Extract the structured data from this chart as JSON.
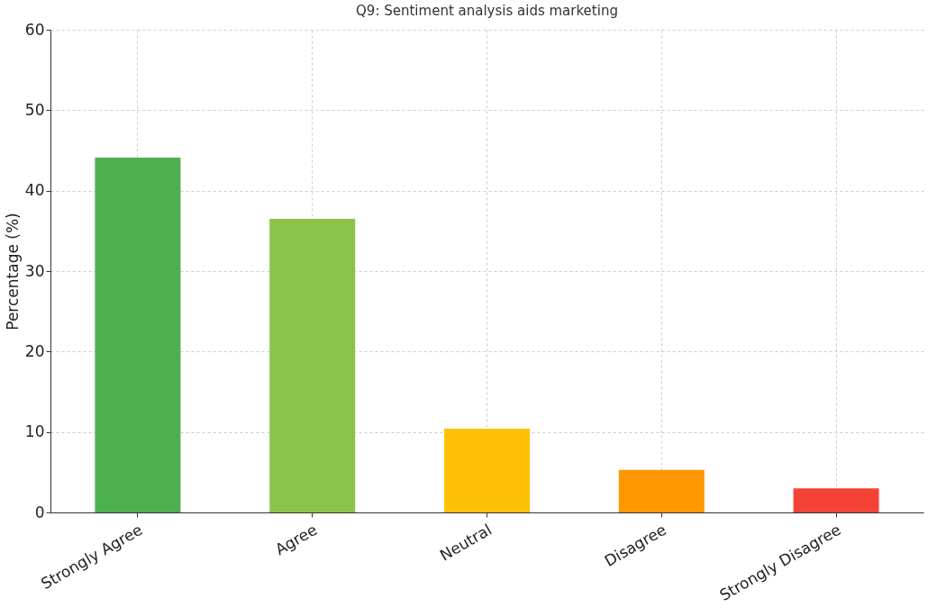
{
  "chart_data": {
    "type": "bar",
    "title": "Q9: Sentiment analysis aids marketing",
    "ylabel": "Percentage (%)",
    "categories": [
      "Strongly Agree",
      "Agree",
      "Neutral",
      "Disagree",
      "Strongly Disagree"
    ],
    "values": [
      44.1,
      36.5,
      10.4,
      5.3,
      3.0
    ],
    "colors": [
      "#4caf50",
      "#8bc34a",
      "#ffc107",
      "#ff9800",
      "#f44336"
    ],
    "ylim": [
      0,
      60
    ],
    "yticks": [
      0,
      10,
      20,
      30,
      40,
      50,
      60
    ],
    "grid": true
  }
}
